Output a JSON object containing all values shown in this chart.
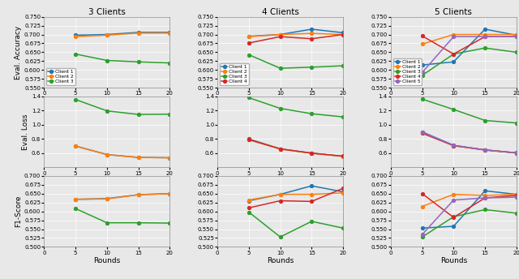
{
  "rounds": [
    0,
    5,
    10,
    15,
    20
  ],
  "columns": [
    "3 Clients",
    "4 Clients",
    "5 Clients"
  ],
  "row_ylabels": [
    "Eval. Accuracy",
    "Eval. Loss",
    "F1-Score"
  ],
  "colors": [
    "#1f77b4",
    "#ff7f0e",
    "#2ca02c",
    "#d62728",
    "#9467bd"
  ],
  "marker": "o",
  "clients_3": {
    "accuracy": [
      [
        null,
        0.698,
        0.7,
        0.706,
        0.706
      ],
      [
        null,
        0.694,
        0.698,
        0.704,
        0.704
      ],
      [
        null,
        0.645,
        0.627,
        0.623,
        0.62
      ]
    ],
    "loss": [
      [
        null,
        0.7,
        0.58,
        0.54,
        0.535
      ],
      [
        null,
        0.7,
        0.58,
        0.54,
        0.535
      ],
      [
        null,
        1.355,
        1.195,
        1.145,
        1.148
      ]
    ],
    "f1": [
      [
        null,
        0.634,
        0.636,
        0.647,
        0.65
      ],
      [
        null,
        0.634,
        0.635,
        0.647,
        0.65
      ],
      [
        null,
        0.608,
        0.568,
        0.568,
        0.567
      ]
    ]
  },
  "clients_4": {
    "accuracy": [
      [
        null,
        0.695,
        0.7,
        0.715,
        0.705
      ],
      [
        null,
        0.694,
        0.7,
        0.703,
        0.7
      ],
      [
        null,
        0.643,
        0.605,
        0.608,
        0.612
      ],
      [
        null,
        0.676,
        0.694,
        0.688,
        0.7
      ]
    ],
    "loss": [
      [
        null,
        0.8,
        0.66,
        0.6,
        0.555
      ],
      [
        null,
        0.79,
        0.658,
        0.598,
        0.555
      ],
      [
        null,
        1.38,
        1.23,
        1.155,
        1.11
      ],
      [
        null,
        0.79,
        0.66,
        0.6,
        0.558
      ]
    ],
    "f1": [
      [
        null,
        0.63,
        0.648,
        0.672,
        0.655
      ],
      [
        null,
        0.632,
        0.648,
        0.648,
        0.652
      ],
      [
        null,
        0.598,
        0.528,
        0.572,
        0.553
      ],
      [
        null,
        0.61,
        0.63,
        0.628,
        0.665
      ]
    ]
  },
  "clients_5": {
    "accuracy": [
      [
        null,
        0.614,
        0.623,
        0.715,
        0.698
      ],
      [
        null,
        0.673,
        0.7,
        0.7,
        0.7
      ],
      [
        null,
        0.585,
        0.645,
        0.662,
        0.65
      ],
      [
        null,
        0.696,
        0.645,
        0.694,
        0.694
      ],
      [
        null,
        0.593,
        0.694,
        0.694,
        0.694
      ]
    ],
    "loss": [
      [
        null,
        0.9,
        0.71,
        0.645,
        0.605
      ],
      [
        null,
        0.89,
        0.705,
        0.645,
        0.603
      ],
      [
        null,
        1.36,
        1.215,
        1.06,
        1.025
      ],
      [
        null,
        0.88,
        0.705,
        0.645,
        0.602
      ],
      [
        null,
        0.895,
        0.71,
        0.645,
        0.603
      ]
    ],
    "f1": [
      [
        null,
        0.553,
        0.558,
        0.658,
        0.648
      ],
      [
        null,
        0.614,
        0.648,
        0.645,
        0.648
      ],
      [
        null,
        0.528,
        0.585,
        0.605,
        0.595
      ],
      [
        null,
        0.65,
        0.583,
        0.638,
        0.645
      ],
      [
        null,
        0.535,
        0.632,
        0.638,
        0.64
      ]
    ]
  },
  "accuracy_ylim": [
    0.55,
    0.75
  ],
  "accuracy_yticks": [
    0.55,
    0.575,
    0.6,
    0.625,
    0.65,
    0.675,
    0.7,
    0.725,
    0.75
  ],
  "loss_ylim": [
    0.4,
    1.4
  ],
  "loss_yticks": [
    0.6,
    0.8,
    1.0,
    1.2,
    1.4
  ],
  "f1_ylim": [
    0.5,
    0.7
  ],
  "f1_yticks": [
    0.5,
    0.525,
    0.55,
    0.575,
    0.6,
    0.625,
    0.65,
    0.675,
    0.7
  ],
  "xlim": [
    0,
    20
  ],
  "xticks": [
    0,
    5,
    10,
    15,
    20
  ],
  "fig_bg": "#e8e8e8"
}
